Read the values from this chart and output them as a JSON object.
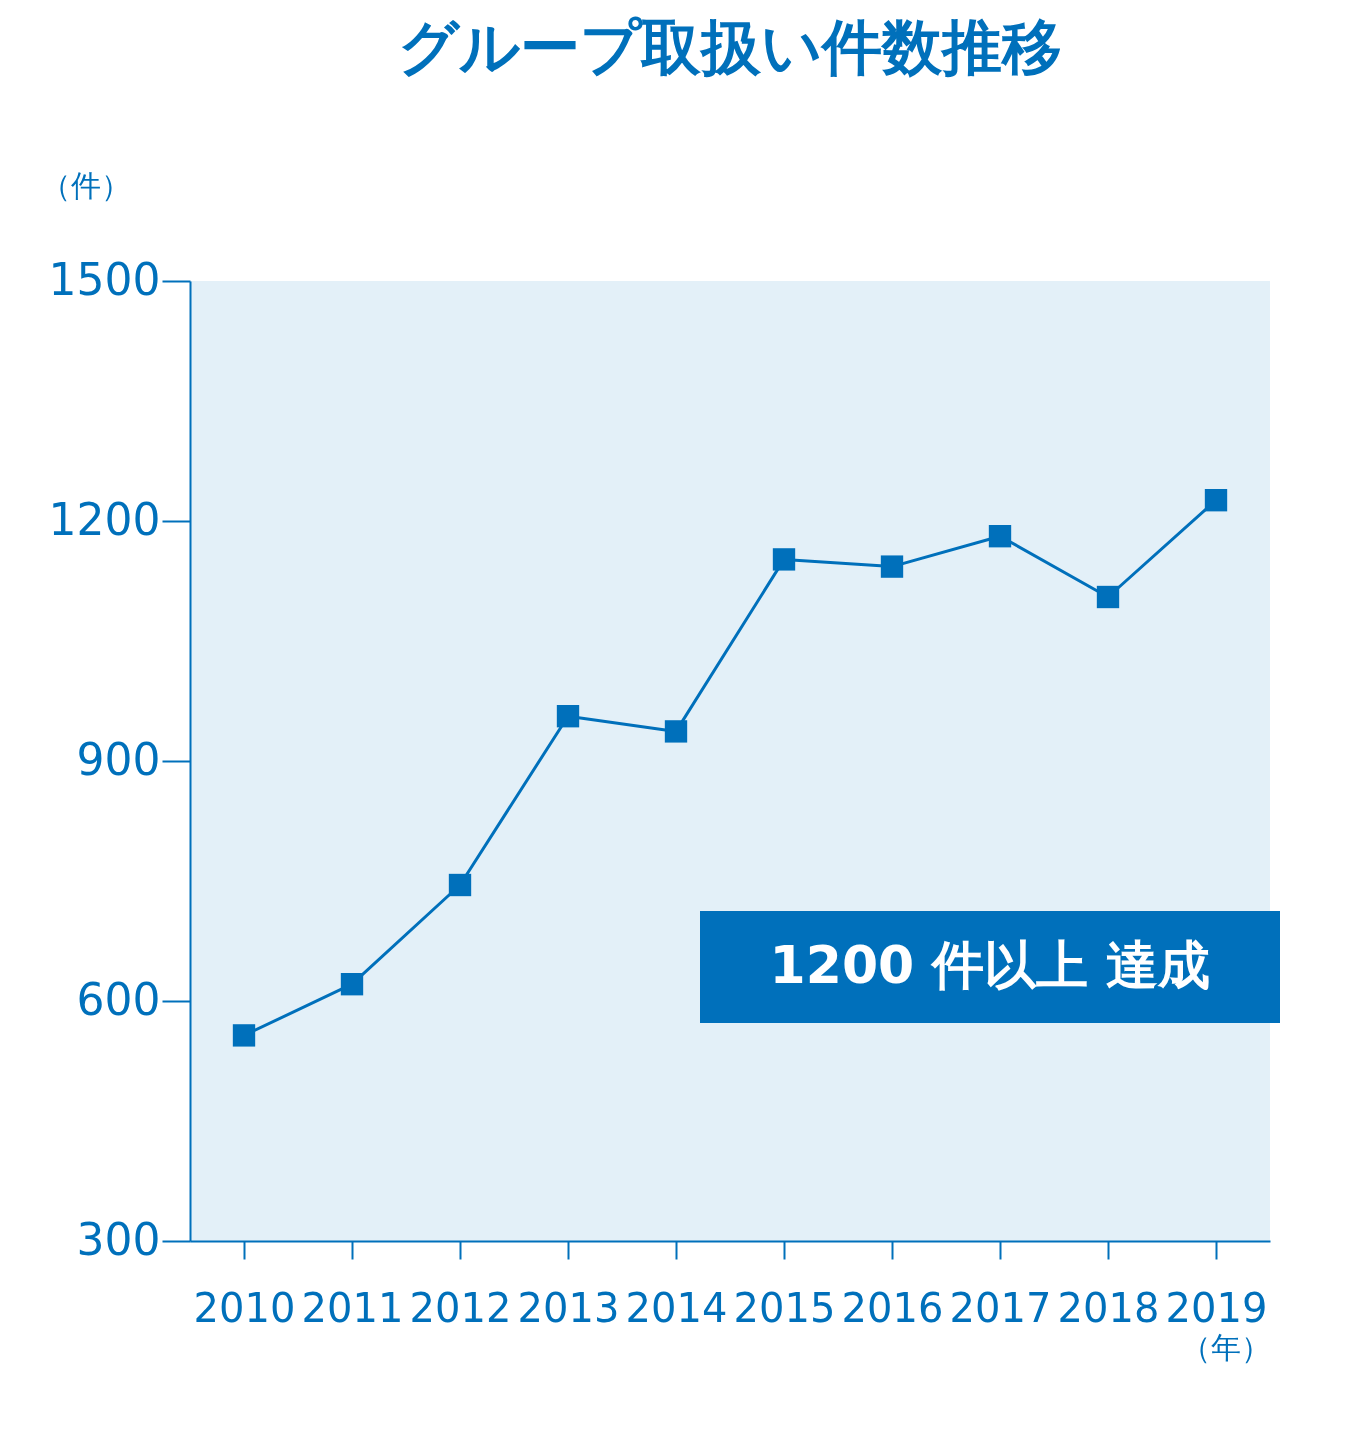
{
  "chart_data": {
    "type": "line",
    "title": "グループ取扱い件数推移",
    "ylabel": "（件）",
    "xlabel": "（年）",
    "categories": [
      "2010",
      "2011",
      "2012",
      "2013",
      "2014",
      "2015",
      "2016",
      "2017",
      "2018",
      "2019"
    ],
    "series": [
      {
        "color": "#0070bb",
        "values": [
          557,
          621,
          745,
          956,
          937,
          1152,
          1143,
          1181,
          1105,
          1226
        ]
      }
    ],
    "ylim": [
      300,
      1500
    ],
    "yticks": [
      300,
      600,
      900,
      1200,
      1500
    ],
    "grid": false,
    "marker": "square",
    "line_style": "solid",
    "annotations": [
      "1200 件以上 達成"
    ]
  }
}
